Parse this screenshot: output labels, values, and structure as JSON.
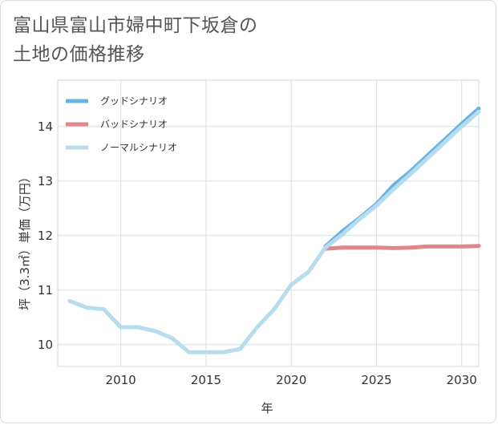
{
  "page": {
    "title_line1": "富山県富山市婦中町下坂倉の",
    "title_line2": "土地の価格推移"
  },
  "chart_data": {
    "type": "line",
    "xlabel": "年",
    "ylabel": "坪（3.3㎡）単価（万円）",
    "xlim": [
      2006.3,
      2031
    ],
    "ylim": [
      9.6,
      14.85
    ],
    "x_ticks": [
      2010,
      2015,
      2020,
      2025,
      2030
    ],
    "y_ticks": [
      10,
      11,
      12,
      13,
      14
    ],
    "grid": true,
    "legend_position": "top-left",
    "series": [
      {
        "name": "グッドシナリオ",
        "color": "#6ab4e2",
        "x": [
          2022,
          2023,
          2024,
          2025,
          2026,
          2027,
          2028,
          2029,
          2030,
          2031
        ],
        "y": [
          11.8,
          12.08,
          12.32,
          12.58,
          12.92,
          13.18,
          13.47,
          13.76,
          14.05,
          14.33
        ]
      },
      {
        "name": "バッドシナリオ",
        "color": "#e0868c",
        "x": [
          2022,
          2023,
          2024,
          2025,
          2026,
          2027,
          2028,
          2029,
          2030,
          2031
        ],
        "y": [
          11.76,
          11.78,
          11.78,
          11.78,
          11.77,
          11.78,
          11.8,
          11.8,
          11.8,
          11.81
        ]
      },
      {
        "name": "ノーマルシナリオ",
        "color": "#b6dcee",
        "x": [
          2007,
          2008,
          2009,
          2010,
          2011,
          2012,
          2013,
          2014,
          2015,
          2016,
          2017,
          2018,
          2019,
          2020,
          2021,
          2022,
          2023,
          2024,
          2025,
          2026,
          2027,
          2028,
          2029,
          2030,
          2031
        ],
        "y": [
          10.8,
          10.68,
          10.65,
          10.32,
          10.32,
          10.25,
          10.12,
          9.86,
          9.86,
          9.86,
          9.92,
          10.32,
          10.65,
          11.1,
          11.33,
          11.78,
          12.02,
          12.3,
          12.55,
          12.85,
          13.13,
          13.42,
          13.71,
          14.0,
          14.27
        ]
      }
    ]
  }
}
